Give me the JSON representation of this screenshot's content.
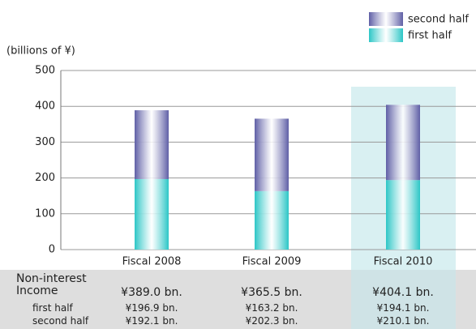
{
  "chart_data": {
    "type": "stacked_bar",
    "y_axis_label": "(billions of ¥)",
    "categories": [
      "Fiscal 2008",
      "Fiscal 2009",
      "Fiscal 2010"
    ],
    "series": [
      {
        "name": "first half",
        "color": "#2cc6c6",
        "values": [
          196.9,
          163.2,
          194.1
        ]
      },
      {
        "name": "second half",
        "color": "#5f5fa6",
        "values": [
          192.1,
          202.3,
          210.1
        ]
      }
    ],
    "ylim": [
      0,
      500
    ],
    "yticks": [
      0,
      100,
      200,
      300,
      400,
      500
    ],
    "grid": true,
    "highlight_category": 2
  },
  "table": {
    "rows": [
      [
        "Non-interest Income",
        "¥389.0 bn.",
        "¥365.5 bn.",
        "¥404.1 bn."
      ],
      [
        "first half",
        "¥196.9 bn.",
        "¥163.2 bn.",
        "¥194.1 bn."
      ],
      [
        "second half",
        "¥192.1 bn.",
        "¥202.3 bn.",
        "¥210.1 bn."
      ]
    ]
  }
}
